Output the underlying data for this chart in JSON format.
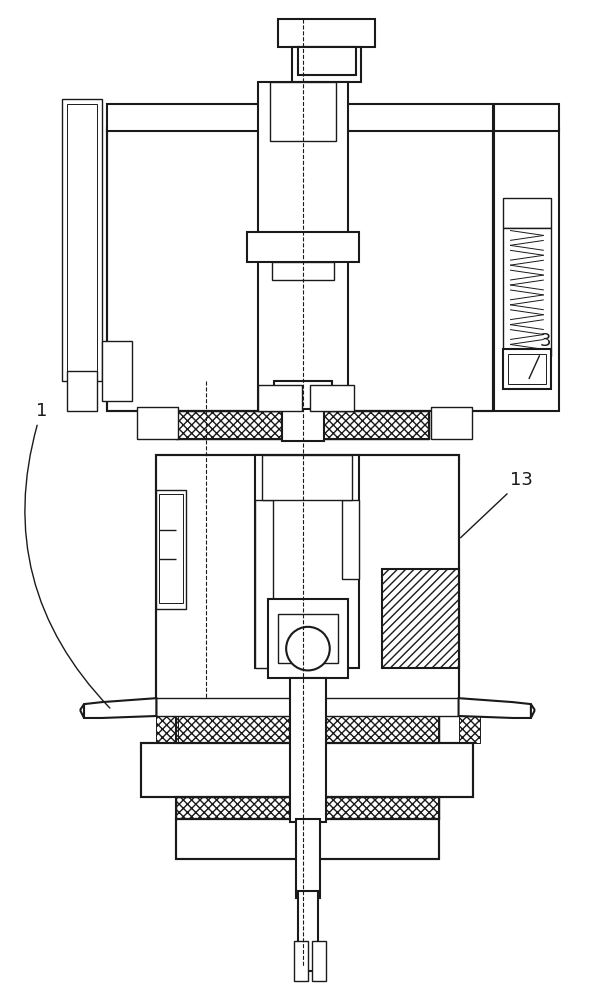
{
  "bg_color": "#ffffff",
  "line_color": "#1a1a1a",
  "label_color": "#1a1a1a",
  "labels": {
    "1": [
      0.055,
      0.415
    ],
    "3": [
      0.895,
      0.345
    ],
    "13": [
      0.845,
      0.485
    ]
  },
  "label_fontsize": 13,
  "figsize": [
    6.06,
    10.0
  ],
  "dpi": 100
}
